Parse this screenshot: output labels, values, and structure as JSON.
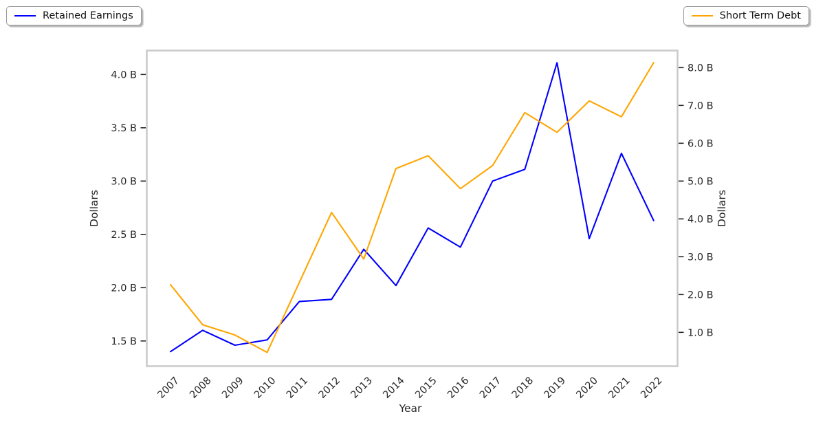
{
  "legend": {
    "left_label": "Retained Earnings",
    "right_label": "Short Term Debt"
  },
  "chart_data": {
    "type": "line",
    "title": "",
    "xlabel": "Year",
    "ylabel_left": "Dollars",
    "ylabel_right": "Dollars",
    "grid": false,
    "legend_position": "outside top-left and top-right",
    "categories": [
      2007,
      2008,
      2009,
      2010,
      2011,
      2012,
      2013,
      2014,
      2015,
      2016,
      2017,
      2018,
      2019,
      2020,
      2021,
      2022
    ],
    "series": [
      {
        "name": "Retained Earnings",
        "axis": "left",
        "color": "#0000ff",
        "unit": "B",
        "values": [
          1.4,
          1.6,
          1.46,
          1.51,
          1.87,
          1.89,
          2.36,
          2.02,
          2.56,
          2.38,
          3.0,
          3.11,
          4.11,
          2.46,
          3.26,
          2.63
        ]
      },
      {
        "name": "Short Term Debt",
        "axis": "right",
        "color": "#ffa500",
        "unit": "B",
        "values": [
          2.26,
          1.2,
          0.93,
          0.47,
          2.32,
          4.17,
          2.94,
          5.33,
          5.67,
          4.8,
          5.41,
          6.81,
          6.29,
          7.12,
          6.7,
          8.13
        ]
      }
    ],
    "left_axis": {
      "ticks": [
        {
          "value": 1.5,
          "label": "1.5 B"
        },
        {
          "value": 2.0,
          "label": "2.0 B"
        },
        {
          "value": 2.5,
          "label": "2.5 B"
        },
        {
          "value": 3.0,
          "label": "3.0 B"
        },
        {
          "value": 3.5,
          "label": "3.5 B"
        },
        {
          "value": 4.0,
          "label": "4.0 B"
        }
      ],
      "approx_range": [
        1.26,
        4.23
      ]
    },
    "right_axis": {
      "ticks": [
        {
          "value": 1.0,
          "label": "1.0 B"
        },
        {
          "value": 2.0,
          "label": "2.0 B"
        },
        {
          "value": 3.0,
          "label": "3.0 B"
        },
        {
          "value": 4.0,
          "label": "4.0 B"
        },
        {
          "value": 5.0,
          "label": "5.0 B"
        },
        {
          "value": 6.0,
          "label": "6.0 B"
        },
        {
          "value": 7.0,
          "label": "7.0 B"
        },
        {
          "value": 8.0,
          "label": "8.0 B"
        }
      ],
      "approx_range": [
        0.1,
        8.46
      ]
    }
  }
}
